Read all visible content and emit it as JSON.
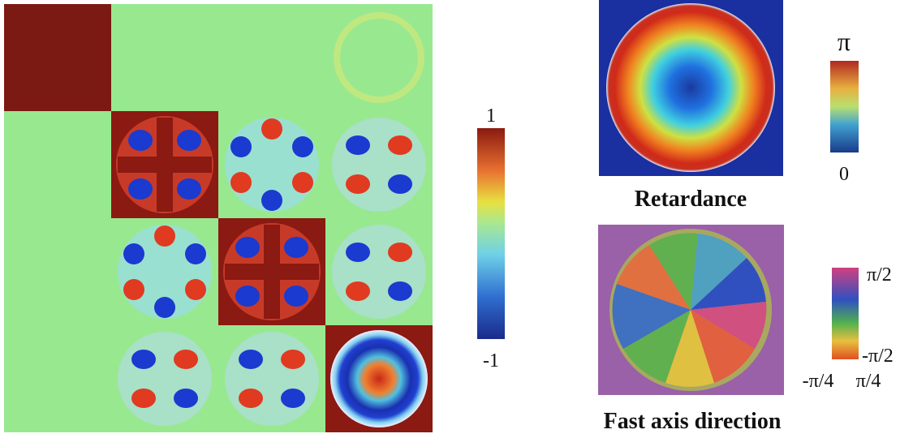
{
  "mueller_matrix": {
    "colorbar": {
      "max_label": "1",
      "min_label": "-1"
    }
  },
  "retardance": {
    "title": "Retardance",
    "colorbar": {
      "max_label": "π",
      "min_label": "0"
    }
  },
  "fast_axis": {
    "title": "Fast axis direction",
    "colorbar": {
      "max_label": "π/2",
      "min_label": "-π/2"
    },
    "angle_labels": [
      "-π/4",
      "π/4"
    ]
  }
}
